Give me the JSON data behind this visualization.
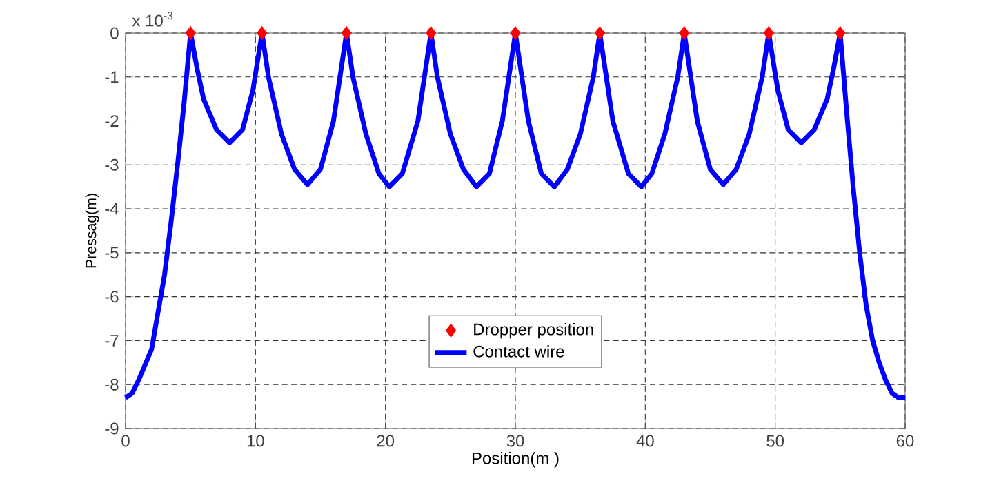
{
  "chart_data": {
    "type": "line",
    "xlabel": "Position(m )",
    "ylabel": "Pressag(m)",
    "annotations": [
      "x 10$^{-3}$"
    ],
    "xlim": [
      0,
      60
    ],
    "xticks": [
      0,
      10,
      20,
      30,
      40,
      50,
      60
    ],
    "ylim": [
      -9,
      0
    ],
    "yticks": [
      -9,
      -8,
      -7,
      -6,
      -5,
      -4,
      -3,
      -2,
      -1,
      0
    ],
    "grid": true,
    "legend": "bottom",
    "line_style": "solid",
    "series": [
      {
        "name": "Dropper position",
        "type": "scatter",
        "marker": "diamond",
        "color": "#ff0000",
        "x": [
          5,
          10.5,
          17,
          23.5,
          30,
          36.5,
          43,
          49.5,
          55
        ],
        "values": [
          0,
          0,
          0,
          0,
          0,
          0,
          0,
          0,
          0
        ]
      },
      {
        "name": "Contact wire",
        "color": "#0000ff",
        "x": [
          0,
          0.5,
          1,
          2,
          3,
          3.5,
          4,
          4.5,
          5,
          5.5,
          6,
          7,
          8,
          9,
          9.8,
          10.5,
          11,
          12,
          13,
          14,
          15,
          16,
          17,
          17.5,
          18.5,
          19.5,
          20.3,
          21.3,
          22.5,
          23.5,
          24,
          25,
          26,
          27,
          28,
          29,
          30,
          31,
          32,
          33,
          34,
          35,
          36,
          36.5,
          37.5,
          38.7,
          39.7,
          40.5,
          41.5,
          42.5,
          43,
          44,
          45,
          46,
          47,
          48,
          49,
          49.5,
          50.2,
          51,
          52,
          53,
          54,
          54.5,
          55,
          55.5,
          56,
          56.5,
          57,
          57.5,
          58,
          58.5,
          59,
          59.5,
          60
        ],
        "values": [
          -8.3,
          -8.2,
          -7.9,
          -7.2,
          -5.5,
          -4.3,
          -3,
          -1.6,
          0,
          -0.8,
          -1.5,
          -2.2,
          -2.5,
          -2.2,
          -1.3,
          0,
          -1,
          -2.3,
          -3.1,
          -3.45,
          -3.1,
          -2,
          0,
          -1,
          -2.3,
          -3.2,
          -3.5,
          -3.2,
          -2,
          0,
          -1,
          -2.3,
          -3.1,
          -3.5,
          -3.2,
          -2,
          0,
          -2,
          -3.2,
          -3.5,
          -3.1,
          -2.3,
          -1,
          0,
          -2,
          -3.2,
          -3.5,
          -3.2,
          -2.3,
          -1,
          0,
          -2,
          -3.1,
          -3.45,
          -3.1,
          -2.3,
          -1,
          0,
          -1.3,
          -2.2,
          -2.5,
          -2.2,
          -1.5,
          -0.8,
          0,
          -1.8,
          -3.5,
          -5,
          -6.2,
          -7,
          -7.5,
          -7.9,
          -8.2,
          -8.3,
          -8.3
        ]
      }
    ]
  }
}
